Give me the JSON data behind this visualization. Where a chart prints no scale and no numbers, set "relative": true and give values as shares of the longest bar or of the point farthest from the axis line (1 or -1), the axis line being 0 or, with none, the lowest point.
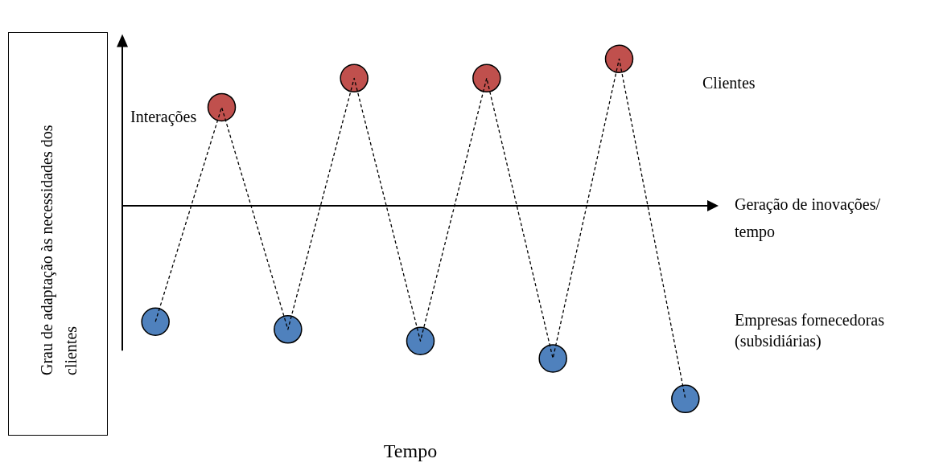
{
  "chart_data": {
    "type": "line",
    "relative": true,
    "xlabel": "Tempo",
    "ylabel": "Grau de adaptação às necessidades dos clientes",
    "categories": [
      null,
      null,
      null,
      null,
      null,
      null,
      null,
      null,
      null
    ],
    "annotations": [
      "Geração de inovações/ tempo",
      "Clientes",
      "Empresas fornecedoras (subsidiárias)"
    ],
    "line_style": "dashed",
    "marker": "circle",
    "series": [
      {
        "name": "Interações",
        "color": "#000000",
        "colors": [
          "#4f81bd",
          "#c0504d",
          "#4f81bd",
          "#c0504d",
          "#4f81bd",
          "#c0504d",
          "#4f81bd",
          "#c0504d",
          "#4f81bd"
        ],
        "values": [
          -0.6,
          0.51,
          -0.64,
          0.66,
          -0.7,
          0.66,
          -0.79,
          0.76,
          -1
        ]
      }
    ]
  }
}
